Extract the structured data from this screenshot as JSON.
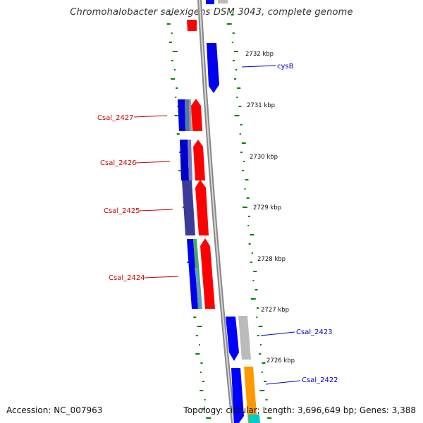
{
  "title": "Chromohalobacter salexigens DSM 3043, complete genome",
  "footer": {
    "accession": "Accession: NC_007963",
    "summary": "Topology: circular; Length: 3,696,649 bp; Genes: 3,388"
  },
  "ticks": [
    {
      "kbp": 2732,
      "label": "2732 kbp"
    },
    {
      "kbp": 2731,
      "label": "2731 kbp"
    },
    {
      "kbp": 2730,
      "label": "2730 kbp"
    },
    {
      "kbp": 2729,
      "label": "2729 kbp"
    },
    {
      "kbp": 2728,
      "label": "2728 kbp"
    },
    {
      "kbp": 2727,
      "label": "2727 kbp"
    },
    {
      "kbp": 2726,
      "label": "2726 kbp"
    }
  ],
  "gene_labels": [
    {
      "text": "cysB",
      "strand": "forward",
      "color": "#0000cc"
    },
    {
      "text": "Csal_2427",
      "strand": "reverse",
      "color": "#cc0000"
    },
    {
      "text": "Csal_2426",
      "strand": "reverse",
      "color": "#cc0000"
    },
    {
      "text": "Csal_2425",
      "strand": "reverse",
      "color": "#cc0000"
    },
    {
      "text": "Csal_2424",
      "strand": "reverse",
      "color": "#cc0000"
    },
    {
      "text": "Csal_2423",
      "strand": "forward",
      "color": "#0000cc"
    },
    {
      "text": "Csal_2422",
      "strand": "forward",
      "color": "#0000cc"
    }
  ],
  "colors": {
    "forward_cds": "#0000ff",
    "reverse_cds": "#ff0000",
    "backbone": "#888888",
    "gc_marks": "#008000",
    "orange_feature": "#ff9900",
    "cyan_feature": "#00cccc"
  }
}
